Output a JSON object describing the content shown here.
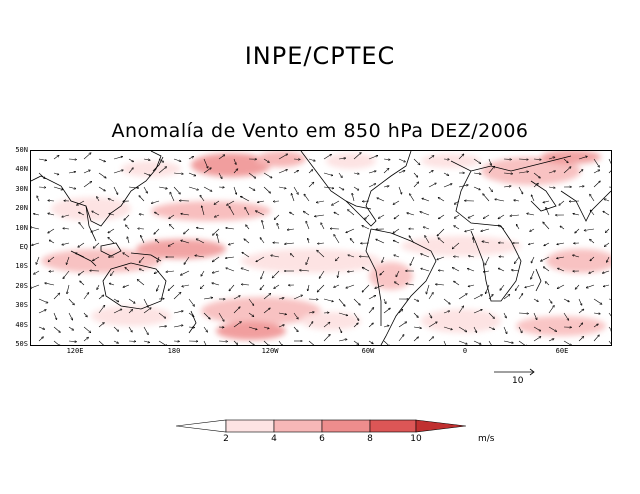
{
  "header": {
    "institution": "INPE/CPTEC",
    "map_title": "Anomalía de Vento em 850 hPa DEZ/2006"
  },
  "map": {
    "latitude_labels": [
      "50N",
      "40N",
      "30N",
      "20N",
      "10N",
      "EQ",
      "10S",
      "20S",
      "30S",
      "40S",
      "50S"
    ],
    "longitude_labels": [
      "120E",
      "180",
      "120W",
      "60W",
      "0",
      "60E"
    ],
    "reference_vector_label": "10"
  },
  "colorbar": {
    "tick_labels": [
      "2",
      "4",
      "6",
      "8",
      "10"
    ],
    "units": "m/s",
    "colors": [
      "#ffffff",
      "#fde3e3",
      "#f7b7b7",
      "#ee8d8d",
      "#dc5656",
      "#c03030"
    ]
  }
}
